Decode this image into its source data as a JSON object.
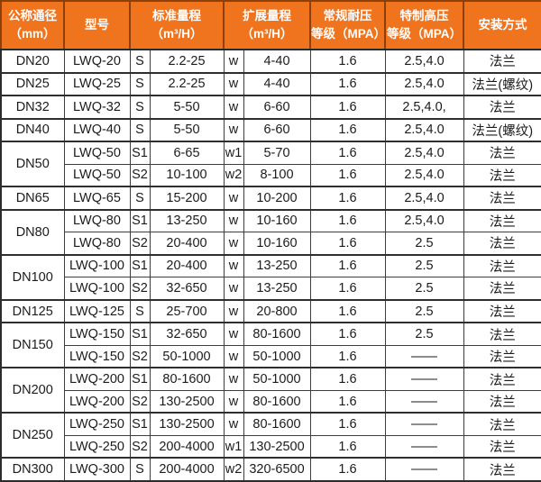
{
  "colors": {
    "header_bg": "#F0741E",
    "header_divider": "#8D3F0A",
    "grid_line": "#3D3D3D",
    "header_text": "#FFFFFF",
    "body_text": "#1B1B1B"
  },
  "table": {
    "header": [
      "公称通径\n（mm）",
      "型号",
      "标准量程\n（m³/H）",
      "扩展量程\n（m³/H）",
      "常规耐压\n等级（MPA）",
      "特制高压\n等级（MPA）",
      "安装方式"
    ],
    "rows": [
      {
        "dn": "DN20",
        "span": 1,
        "group_start": true,
        "cells": [
          "LWQ-20",
          "S",
          "2.2-25",
          "w",
          "4-40",
          "1.6",
          "2.5,4.0",
          "法兰"
        ]
      },
      {
        "dn": "DN25",
        "span": 1,
        "group_start": true,
        "cells": [
          "LWQ-25",
          "S",
          "2.2-25",
          "w",
          "4-40",
          "1.6",
          "2.5,4.0",
          "法兰(螺纹)"
        ]
      },
      {
        "dn": "DN32",
        "span": 1,
        "group_start": true,
        "cells": [
          "LWQ-32",
          "S",
          "5-50",
          "w",
          "6-60",
          "1.6",
          "2.5,4.0,",
          "法兰"
        ]
      },
      {
        "dn": "DN40",
        "span": 1,
        "group_start": true,
        "cells": [
          "LWQ-40",
          "S",
          "5-50",
          "w",
          "6-60",
          "1.6",
          "2.5,4.0",
          "法兰(螺纹)"
        ]
      },
      {
        "dn": "DN50",
        "span": 2,
        "group_start": true,
        "cells": [
          "LWQ-50",
          "S1",
          "6-65",
          "w1",
          "5-70",
          "1.6",
          "2.5,4.0",
          "法兰"
        ]
      },
      {
        "dn": null,
        "span": 0,
        "group_start": false,
        "cells": [
          "LWQ-50",
          "S2",
          "10-100",
          "w2",
          "8-100",
          "1.6",
          "2.5,4.0",
          "法兰"
        ]
      },
      {
        "dn": "DN65",
        "span": 1,
        "group_start": true,
        "cells": [
          "LWQ-65",
          "S",
          "15-200",
          "w",
          "10-200",
          "1.6",
          "2.5,4.0",
          "法兰"
        ]
      },
      {
        "dn": "DN80",
        "span": 2,
        "group_start": true,
        "cells": [
          "LWQ-80",
          "S1",
          "13-250",
          "w",
          "10-160",
          "1.6",
          "2.5,4.0",
          "法兰"
        ]
      },
      {
        "dn": null,
        "span": 0,
        "group_start": false,
        "cells": [
          "LWQ-80",
          "S2",
          "20-400",
          "w",
          "10-160",
          "1.6",
          "2.5",
          "法兰"
        ]
      },
      {
        "dn": "DN100",
        "span": 2,
        "group_start": true,
        "cells": [
          "LWQ-100",
          "S1",
          "20-400",
          "w",
          "13-250",
          "1.6",
          "2.5",
          "法兰"
        ]
      },
      {
        "dn": null,
        "span": 0,
        "group_start": false,
        "cells": [
          "LWQ-100",
          "S2",
          "32-650",
          "w",
          "13-250",
          "1.6",
          "2.5",
          "法兰"
        ]
      },
      {
        "dn": "DN125",
        "span": 1,
        "group_start": true,
        "cells": [
          "LWQ-125",
          "S",
          "25-700",
          "w",
          "20-800",
          "1.6",
          "2.5",
          "法兰"
        ]
      },
      {
        "dn": "DN150",
        "span": 2,
        "group_start": true,
        "cells": [
          "LWQ-150",
          "S1",
          "32-650",
          "w",
          "80-1600",
          "1.6",
          "2.5",
          "法兰"
        ]
      },
      {
        "dn": null,
        "span": 0,
        "group_start": false,
        "cells": [
          "LWQ-150",
          "S2",
          "50-1000",
          "w",
          "50-1000",
          "1.6",
          "——",
          "法兰"
        ]
      },
      {
        "dn": "DN200",
        "span": 2,
        "group_start": true,
        "cells": [
          "LWQ-200",
          "S1",
          "80-1600",
          "w",
          "50-1000",
          "1.6",
          "——",
          "法兰"
        ]
      },
      {
        "dn": null,
        "span": 0,
        "group_start": false,
        "cells": [
          "LWQ-200",
          "S2",
          "130-2500",
          "w",
          "80-1600",
          "1.6",
          "——",
          "法兰"
        ]
      },
      {
        "dn": "DN250",
        "span": 2,
        "group_start": true,
        "cells": [
          "LWQ-250",
          "S1",
          "130-2500",
          "w",
          "80-1600",
          "1.6",
          "——",
          "法兰"
        ]
      },
      {
        "dn": null,
        "span": 0,
        "group_start": false,
        "cells": [
          "LWQ-250",
          "S2",
          "200-4000",
          "w1",
          "130-2500",
          "1.6",
          "——",
          "法兰"
        ]
      },
      {
        "dn": "DN300",
        "span": 1,
        "group_start": true,
        "cells": [
          "LWQ-300",
          "S",
          "200-4000",
          "w2",
          "320-6500",
          "1.6",
          "——",
          "法兰"
        ]
      }
    ]
  }
}
